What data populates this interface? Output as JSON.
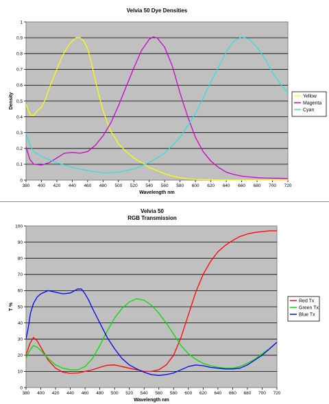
{
  "chart_data": [
    {
      "type": "line",
      "title": "Velvia 50 Dye Densities",
      "subtitle": "",
      "xlabel": "Wavelength nm",
      "ylabel": "Density",
      "xlim": [
        380,
        720
      ],
      "ylim": [
        0,
        1
      ],
      "xticks": [
        380,
        400,
        420,
        440,
        460,
        480,
        500,
        520,
        540,
        560,
        580,
        600,
        620,
        640,
        660,
        680,
        700,
        720
      ],
      "yticks": [
        0,
        0.1,
        0.2,
        0.3,
        0.4,
        0.5,
        0.6,
        0.7,
        0.8,
        0.9,
        1
      ],
      "tick_decimals": 1,
      "grid": true,
      "legend": "right",
      "series": [
        {
          "name": "Yellow",
          "color": "#ffff00",
          "points": [
            [
              380,
              0.48
            ],
            [
              383,
              0.44
            ],
            [
              386,
              0.41
            ],
            [
              390,
              0.41
            ],
            [
              395,
              0.44
            ],
            [
              400,
              0.46
            ],
            [
              405,
              0.51
            ],
            [
              410,
              0.58
            ],
            [
              415,
              0.64
            ],
            [
              420,
              0.7
            ],
            [
              425,
              0.76
            ],
            [
              430,
              0.81
            ],
            [
              435,
              0.85
            ],
            [
              440,
              0.88
            ],
            [
              445,
              0.9
            ],
            [
              450,
              0.9
            ],
            [
              455,
              0.88
            ],
            [
              460,
              0.83
            ],
            [
              465,
              0.74
            ],
            [
              470,
              0.63
            ],
            [
              475,
              0.53
            ],
            [
              480,
              0.44
            ],
            [
              485,
              0.37
            ],
            [
              490,
              0.31
            ],
            [
              500,
              0.23
            ],
            [
              510,
              0.18
            ],
            [
              520,
              0.14
            ],
            [
              530,
              0.11
            ],
            [
              540,
              0.08
            ],
            [
              550,
              0.06
            ],
            [
              560,
              0.04
            ],
            [
              570,
              0.025
            ],
            [
              580,
              0.015
            ],
            [
              590,
              0.008
            ],
            [
              600,
              0.004
            ],
            [
              620,
              0.002
            ],
            [
              650,
              0.0
            ],
            [
              720,
              0.0
            ]
          ]
        },
        {
          "name": "Magenta",
          "color": "#cc00cc",
          "points": [
            [
              380,
              0.21
            ],
            [
              385,
              0.13
            ],
            [
              390,
              0.1
            ],
            [
              400,
              0.095
            ],
            [
              410,
              0.11
            ],
            [
              420,
              0.14
            ],
            [
              430,
              0.17
            ],
            [
              440,
              0.175
            ],
            [
              450,
              0.17
            ],
            [
              460,
              0.18
            ],
            [
              470,
              0.22
            ],
            [
              480,
              0.28
            ],
            [
              490,
              0.36
            ],
            [
              500,
              0.47
            ],
            [
              510,
              0.59
            ],
            [
              520,
              0.71
            ],
            [
              530,
              0.82
            ],
            [
              540,
              0.89
            ],
            [
              545,
              0.905
            ],
            [
              550,
              0.9
            ],
            [
              560,
              0.84
            ],
            [
              570,
              0.72
            ],
            [
              580,
              0.55
            ],
            [
              590,
              0.4
            ],
            [
              600,
              0.27
            ],
            [
              610,
              0.18
            ],
            [
              620,
              0.12
            ],
            [
              630,
              0.08
            ],
            [
              640,
              0.05
            ],
            [
              650,
              0.035
            ],
            [
              660,
              0.025
            ],
            [
              670,
              0.02
            ],
            [
              680,
              0.015
            ],
            [
              700,
              0.012
            ],
            [
              720,
              0.01
            ]
          ]
        },
        {
          "name": "Cyan",
          "color": "#33dddd",
          "points": [
            [
              380,
              0.3
            ],
            [
              385,
              0.22
            ],
            [
              390,
              0.18
            ],
            [
              400,
              0.15
            ],
            [
              420,
              0.11
            ],
            [
              440,
              0.08
            ],
            [
              460,
              0.06
            ],
            [
              480,
              0.045
            ],
            [
              500,
              0.05
            ],
            [
              520,
              0.07
            ],
            [
              540,
              0.11
            ],
            [
              560,
              0.17
            ],
            [
              580,
              0.27
            ],
            [
              600,
              0.42
            ],
            [
              620,
              0.62
            ],
            [
              640,
              0.81
            ],
            [
              650,
              0.88
            ],
            [
              660,
              0.905
            ],
            [
              670,
              0.89
            ],
            [
              680,
              0.84
            ],
            [
              690,
              0.77
            ],
            [
              700,
              0.68
            ],
            [
              710,
              0.61
            ],
            [
              720,
              0.55
            ]
          ]
        }
      ]
    },
    {
      "type": "line",
      "title": "Velvia 50",
      "subtitle": "RGB Transmission",
      "xlabel": "Wavelength nm",
      "ylabel": "T %",
      "xlim": [
        380,
        720
      ],
      "ylim": [
        0,
        100
      ],
      "xticks": [
        380,
        400,
        420,
        440,
        460,
        480,
        500,
        520,
        540,
        560,
        580,
        600,
        620,
        640,
        660,
        680,
        700,
        720
      ],
      "yticks": [
        0,
        10,
        20,
        30,
        40,
        50,
        60,
        70,
        80,
        90,
        100
      ],
      "tick_decimals": 0,
      "grid": true,
      "legend": "right",
      "series": [
        {
          "name": "Red Tx",
          "color": "#ff0000",
          "points": [
            [
              380,
              20
            ],
            [
              385,
              27
            ],
            [
              390,
              31
            ],
            [
              395,
              29
            ],
            [
              400,
              25
            ],
            [
              410,
              17
            ],
            [
              420,
              12
            ],
            [
              430,
              9.5
            ],
            [
              440,
              8.8
            ],
            [
              450,
              9
            ],
            [
              460,
              10
            ],
            [
              470,
              11
            ],
            [
              480,
              12.5
            ],
            [
              490,
              13.8
            ],
            [
              500,
              14
            ],
            [
              510,
              13
            ],
            [
              520,
              12
            ],
            [
              530,
              11
            ],
            [
              540,
              10
            ],
            [
              550,
              10
            ],
            [
              560,
              11
            ],
            [
              570,
              14
            ],
            [
              580,
              20
            ],
            [
              590,
              31
            ],
            [
              600,
              45
            ],
            [
              610,
              59
            ],
            [
              620,
              70
            ],
            [
              630,
              78
            ],
            [
              640,
              84
            ],
            [
              650,
              88
            ],
            [
              660,
              91
            ],
            [
              670,
              93.5
            ],
            [
              680,
              95
            ],
            [
              690,
              96
            ],
            [
              700,
              96.5
            ],
            [
              710,
              97
            ],
            [
              720,
              97
            ]
          ]
        },
        {
          "name": "Green Tx",
          "color": "#00dd00",
          "points": [
            [
              380,
              18
            ],
            [
              385,
              23
            ],
            [
              390,
              26
            ],
            [
              395,
              25
            ],
            [
              400,
              23
            ],
            [
              410,
              18
            ],
            [
              420,
              14
            ],
            [
              430,
              12
            ],
            [
              440,
              11
            ],
            [
              450,
              11
            ],
            [
              460,
              13
            ],
            [
              470,
              18
            ],
            [
              480,
              26
            ],
            [
              490,
              35
            ],
            [
              500,
              43
            ],
            [
              510,
              49
            ],
            [
              520,
              53
            ],
            [
              530,
              55
            ],
            [
              540,
              54
            ],
            [
              550,
              51
            ],
            [
              560,
              46
            ],
            [
              570,
              40
            ],
            [
              580,
              33
            ],
            [
              590,
              26
            ],
            [
              600,
              21
            ],
            [
              610,
              17.5
            ],
            [
              620,
              15
            ],
            [
              630,
              13.5
            ],
            [
              640,
              12.5
            ],
            [
              650,
              12
            ],
            [
              660,
              12
            ],
            [
              670,
              13
            ],
            [
              680,
              15
            ],
            [
              690,
              17.5
            ],
            [
              700,
              21
            ],
            [
              710,
              24
            ],
            [
              720,
              28
            ]
          ]
        },
        {
          "name": "Blue Tx",
          "color": "#0000ee",
          "points": [
            [
              380,
              30
            ],
            [
              383,
              37
            ],
            [
              386,
              46
            ],
            [
              390,
              52
            ],
            [
              395,
              56
            ],
            [
              400,
              58
            ],
            [
              405,
              59
            ],
            [
              410,
              60
            ],
            [
              420,
              59
            ],
            [
              430,
              58
            ],
            [
              440,
              58.5
            ],
            [
              450,
              61
            ],
            [
              455,
              61
            ],
            [
              460,
              58
            ],
            [
              465,
              54
            ],
            [
              470,
              49
            ],
            [
              480,
              40
            ],
            [
              490,
              31
            ],
            [
              500,
              24
            ],
            [
              510,
              18
            ],
            [
              520,
              14
            ],
            [
              530,
              11.5
            ],
            [
              540,
              9.5
            ],
            [
              550,
              8
            ],
            [
              560,
              7.5
            ],
            [
              570,
              8
            ],
            [
              580,
              9
            ],
            [
              590,
              11
            ],
            [
              600,
              13
            ],
            [
              610,
              14
            ],
            [
              620,
              13.5
            ],
            [
              630,
              12.5
            ],
            [
              640,
              12
            ],
            [
              650,
              11.5
            ],
            [
              660,
              11.5
            ],
            [
              670,
              12
            ],
            [
              680,
              14
            ],
            [
              690,
              17
            ],
            [
              700,
              20
            ],
            [
              710,
              24
            ],
            [
              720,
              28
            ]
          ]
        }
      ]
    }
  ]
}
